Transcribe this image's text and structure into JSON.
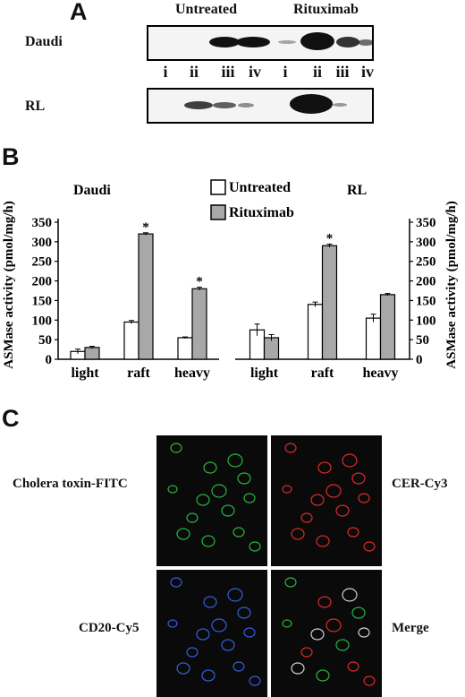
{
  "panel_a": {
    "letter": "A",
    "group_untreated": "Untreated",
    "group_rituximab": "Rituximab",
    "row_daudi": "Daudi",
    "row_rl": "RL",
    "lanes": [
      "i",
      "ii",
      "iii",
      "iv",
      "i",
      "ii",
      "iii",
      "iv"
    ]
  },
  "panel_b": {
    "letter": "B",
    "legend_untreated": "Untreated",
    "legend_rituximab": "Rituximab"
  },
  "panel_c": {
    "letter": "C",
    "label_tl": "Cholera toxin-FITC",
    "label_tr": "CER-Cy3",
    "label_bl": "CD20-Cy5",
    "label_br": "Merge"
  },
  "colors": {
    "untreated": "#ffffff",
    "rituximab": "#a8a8a8",
    "fitc": "#2fd14a",
    "cy3": "#ff3030",
    "cy5": "#3a6fff"
  },
  "chart_data": [
    {
      "type": "bar",
      "title": "Daudi",
      "ylabel": "ASMase activity (pmol/mg/h)",
      "categories": [
        "light",
        "raft",
        "heavy"
      ],
      "series": [
        {
          "name": "Untreated",
          "values": [
            20,
            95,
            55
          ],
          "errors": [
            6,
            4,
            2
          ]
        },
        {
          "name": "Rituximab",
          "values": [
            30,
            320,
            180
          ],
          "errors": [
            3,
            3,
            4
          ]
        }
      ],
      "significance": [
        "",
        "*",
        "*"
      ],
      "ylim": [
        0,
        350
      ],
      "yticks": [
        0,
        50,
        100,
        150,
        200,
        250,
        300,
        350
      ]
    },
    {
      "type": "bar",
      "title": "RL",
      "ylabel": "ASMase activity (pmol/mg/h)",
      "categories": [
        "light",
        "raft",
        "heavy"
      ],
      "series": [
        {
          "name": "Untreated",
          "values": [
            75,
            140,
            105
          ],
          "errors": [
            15,
            6,
            10
          ]
        },
        {
          "name": "Rituximab",
          "values": [
            55,
            290,
            165
          ],
          "errors": [
            8,
            4,
            3
          ]
        }
      ],
      "significance": [
        "",
        "*",
        ""
      ],
      "ylim": [
        0,
        350
      ],
      "yticks": [
        0,
        50,
        100,
        150,
        200,
        250,
        300,
        350
      ]
    }
  ]
}
